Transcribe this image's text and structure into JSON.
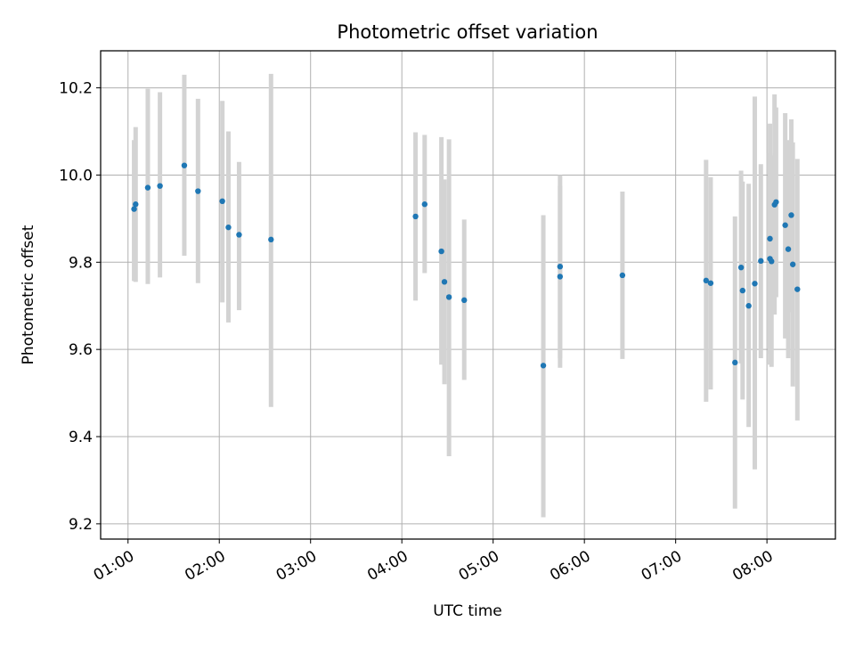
{
  "chart_data": {
    "type": "scatter",
    "title": "Photometric offset variation",
    "xlabel": "UTC time",
    "ylabel": "Photometric offset",
    "x_axis_kind": "time",
    "xlim": [
      "00:42",
      "08:45"
    ],
    "ylim": [
      9.165,
      10.285
    ],
    "x_ticks": [
      "01:00",
      "02:00",
      "03:00",
      "04:00",
      "05:00",
      "06:00",
      "07:00",
      "08:00"
    ],
    "y_ticks": [
      "9.2",
      "9.4",
      "9.6",
      "9.8",
      "10.0",
      "10.2"
    ],
    "y_tick_values": [
      9.2,
      9.4,
      9.6,
      9.8,
      10.0,
      10.2
    ],
    "grid": true,
    "colors": {
      "marker": "#1f77b4",
      "errorbar": "#d3d3d3",
      "grid": "#b0b0b0"
    },
    "points": [
      {
        "x": "01:04",
        "y": 9.922,
        "ylow": 9.757,
        "yhigh": 10.08
      },
      {
        "x": "01:05",
        "y": 9.933,
        "ylow": 9.755,
        "yhigh": 10.11
      },
      {
        "x": "01:13",
        "y": 9.971,
        "ylow": 9.75,
        "yhigh": 10.198
      },
      {
        "x": "01:21",
        "y": 9.975,
        "ylow": 9.765,
        "yhigh": 10.19
      },
      {
        "x": "01:37",
        "y": 10.022,
        "ylow": 9.815,
        "yhigh": 10.23
      },
      {
        "x": "01:46",
        "y": 9.963,
        "ylow": 9.752,
        "yhigh": 10.175
      },
      {
        "x": "02:02",
        "y": 9.94,
        "ylow": 9.708,
        "yhigh": 10.17
      },
      {
        "x": "02:06",
        "y": 9.88,
        "ylow": 9.662,
        "yhigh": 10.1
      },
      {
        "x": "02:13",
        "y": 9.863,
        "ylow": 9.69,
        "yhigh": 10.03
      },
      {
        "x": "02:34",
        "y": 9.852,
        "ylow": 9.468,
        "yhigh": 10.232
      },
      {
        "x": "04:09",
        "y": 9.905,
        "ylow": 9.712,
        "yhigh": 10.098
      },
      {
        "x": "04:15",
        "y": 9.933,
        "ylow": 9.775,
        "yhigh": 10.092
      },
      {
        "x": "04:26",
        "y": 9.825,
        "ylow": 9.565,
        "yhigh": 10.087
      },
      {
        "x": "04:28",
        "y": 9.755,
        "ylow": 9.52,
        "yhigh": 9.99
      },
      {
        "x": "04:31",
        "y": 9.72,
        "ylow": 9.355,
        "yhigh": 10.082
      },
      {
        "x": "04:41",
        "y": 9.713,
        "ylow": 9.53,
        "yhigh": 9.898
      },
      {
        "x": "05:33",
        "y": 9.563,
        "ylow": 9.215,
        "yhigh": 9.908
      },
      {
        "x": "05:44",
        "y": 9.79,
        "ylow": 9.58,
        "yhigh": 10.0
      },
      {
        "x": "05:44",
        "y": 9.767,
        "ylow": 9.558,
        "yhigh": 9.975
      },
      {
        "x": "06:25",
        "y": 9.77,
        "ylow": 9.578,
        "yhigh": 9.962
      },
      {
        "x": "07:20",
        "y": 9.758,
        "ylow": 9.48,
        "yhigh": 10.035
      },
      {
        "x": "07:23",
        "y": 9.752,
        "ylow": 9.508,
        "yhigh": 9.995
      },
      {
        "x": "07:39",
        "y": 9.57,
        "ylow": 9.235,
        "yhigh": 9.905
      },
      {
        "x": "07:43",
        "y": 9.788,
        "ylow": 9.568,
        "yhigh": 10.01
      },
      {
        "x": "07:44",
        "y": 9.735,
        "ylow": 9.485,
        "yhigh": 9.985
      },
      {
        "x": "07:48",
        "y": 9.7,
        "ylow": 9.422,
        "yhigh": 9.98
      },
      {
        "x": "07:52",
        "y": 9.751,
        "ylow": 9.325,
        "yhigh": 10.18
      },
      {
        "x": "07:56",
        "y": 9.803,
        "ylow": 9.58,
        "yhigh": 10.025
      },
      {
        "x": "08:02",
        "y": 9.854,
        "ylow": 9.59,
        "yhigh": 10.118
      },
      {
        "x": "08:02",
        "y": 9.808,
        "ylow": 9.565,
        "yhigh": 10.05
      },
      {
        "x": "08:03",
        "y": 9.802,
        "ylow": 9.56,
        "yhigh": 10.045
      },
      {
        "x": "08:05",
        "y": 9.932,
        "ylow": 9.68,
        "yhigh": 10.185
      },
      {
        "x": "08:06",
        "y": 9.938,
        "ylow": 9.72,
        "yhigh": 10.155
      },
      {
        "x": "08:12",
        "y": 9.885,
        "ylow": 9.625,
        "yhigh": 10.142
      },
      {
        "x": "08:14",
        "y": 9.83,
        "ylow": 9.58,
        "yhigh": 10.08
      },
      {
        "x": "08:16",
        "y": 9.908,
        "ylow": 9.685,
        "yhigh": 10.128
      },
      {
        "x": "08:17",
        "y": 9.795,
        "ylow": 9.515,
        "yhigh": 10.075
      },
      {
        "x": "08:20",
        "y": 9.738,
        "ylow": 9.437,
        "yhigh": 10.037
      }
    ]
  }
}
